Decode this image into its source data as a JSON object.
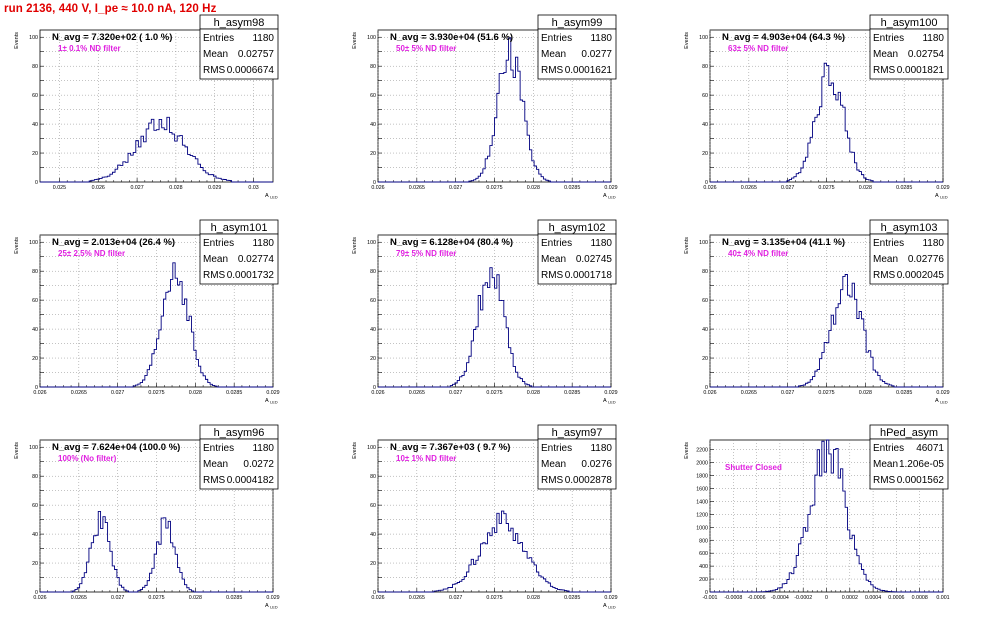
{
  "header": {
    "title": "run 2136,   440 V, I_pe ≈ 10.0 nA, 120 Hz"
  },
  "chart_data": [
    {
      "type": "histogram",
      "name": "h_asym98",
      "annotation": "N_avg = 7.320e+02 ( 1.0 %)",
      "filter": "1± 0.1% ND filter",
      "stats": {
        "Entries": "1180",
        "Mean": "0.02757",
        "RMS": "0.0006674"
      },
      "ylabel": "Events",
      "xlabel": "A_LED",
      "xlim": [
        0.0245,
        0.0305
      ],
      "ylim": [
        0,
        105
      ],
      "xticks": [
        "0.025",
        "0.026",
        "0.027",
        "0.028",
        "0.029",
        "0.03"
      ],
      "xtick_values": [
        0.025,
        0.026,
        0.027,
        0.028,
        0.029,
        0.03
      ],
      "yticks": [
        0,
        10,
        20,
        30,
        40,
        50,
        60,
        70,
        80,
        90,
        100
      ],
      "ytick_labels": [
        "0",
        "",
        "20",
        "",
        "40",
        "",
        "60",
        "",
        "80",
        "",
        "100"
      ],
      "peaks": [
        {
          "center": 0.0276,
          "sigma": 0.00065,
          "height": 40
        }
      ],
      "bins": 90
    },
    {
      "type": "histogram",
      "name": "h_asym99",
      "annotation": "N_avg = 3.930e+04 (51.6 %)",
      "filter": "50± 5% ND filter",
      "stats": {
        "Entries": "1180",
        "Mean": "0.0277",
        "RMS": "0.0001621"
      },
      "ylabel": "Events",
      "xlabel": "A_LED",
      "xlim": [
        0.026,
        0.029
      ],
      "ylim": [
        0,
        105
      ],
      "xticks": [
        "0.026",
        "0.0265",
        "0.027",
        "0.0275",
        "0.028",
        "0.0285",
        "0.029"
      ],
      "xtick_values": [
        0.026,
        0.0265,
        0.027,
        0.0275,
        0.028,
        0.0285,
        0.029
      ],
      "yticks": [
        0,
        10,
        20,
        30,
        40,
        50,
        60,
        70,
        80,
        90,
        100
      ],
      "ytick_labels": [
        "0",
        "",
        "20",
        "",
        "40",
        "",
        "60",
        "",
        "80",
        "",
        "100"
      ],
      "peaks": [
        {
          "center": 0.0277,
          "sigma": 0.000162,
          "height": 88
        }
      ],
      "bins": 100
    },
    {
      "type": "histogram",
      "name": "h_asym100",
      "annotation": "N_avg = 4.903e+04 (64.3 %)",
      "filter": "63± 5% ND filter",
      "stats": {
        "Entries": "1180",
        "Mean": "0.02754",
        "RMS": "0.0001821"
      },
      "ylabel": "Events",
      "xlabel": "A_LED",
      "xlim": [
        0.026,
        0.029
      ],
      "ylim": [
        0,
        105
      ],
      "xticks": [
        "0.026",
        "0.0265",
        "0.027",
        "0.0275",
        "0.028",
        "0.0285",
        "0.029"
      ],
      "xtick_values": [
        0.026,
        0.0265,
        0.027,
        0.0275,
        0.028,
        0.0285,
        0.029
      ],
      "yticks": [
        0,
        10,
        20,
        30,
        40,
        50,
        60,
        70,
        80,
        90,
        100
      ],
      "ytick_labels": [
        "0",
        "",
        "20",
        "",
        "40",
        "",
        "60",
        "",
        "80",
        "",
        "100"
      ],
      "peaks": [
        {
          "center": 0.02754,
          "sigma": 0.00018,
          "height": 75
        }
      ],
      "bins": 100
    },
    {
      "type": "histogram",
      "name": "h_asym101",
      "annotation": "N_avg = 2.013e+04 (26.4 %)",
      "filter": "25± 2.5% ND filter",
      "stats": {
        "Entries": "1180",
        "Mean": "0.02774",
        "RMS": "0.0001732"
      },
      "ylabel": "Events",
      "xlabel": "A_LED",
      "xlim": [
        0.026,
        0.029
      ],
      "ylim": [
        0,
        105
      ],
      "xticks": [
        "0.026",
        "0.0265",
        "0.027",
        "0.0275",
        "0.028",
        "0.0285",
        "0.029"
      ],
      "xtick_values": [
        0.026,
        0.0265,
        0.027,
        0.0275,
        0.028,
        0.0285,
        0.029
      ],
      "yticks": [
        0,
        10,
        20,
        30,
        40,
        50,
        60,
        70,
        80,
        90,
        100
      ],
      "ytick_labels": [
        "0",
        "",
        "20",
        "",
        "40",
        "",
        "60",
        "",
        "80",
        "",
        "100"
      ],
      "peaks": [
        {
          "center": 0.02774,
          "sigma": 0.00017,
          "height": 82
        }
      ],
      "bins": 100
    },
    {
      "type": "histogram",
      "name": "h_asym102",
      "annotation": "N_avg = 6.128e+04 (80.4 %)",
      "filter": "79± 5% ND filter",
      "stats": {
        "Entries": "1180",
        "Mean": "0.02745",
        "RMS": "0.0001718"
      },
      "ylabel": "Events",
      "xlabel": "A_LED",
      "xlim": [
        0.026,
        0.029
      ],
      "ylim": [
        0,
        105
      ],
      "xticks": [
        "0.026",
        "0.0265",
        "0.027",
        "0.0275",
        "0.028",
        "0.0285",
        "0.029"
      ],
      "xtick_values": [
        0.026,
        0.0265,
        0.027,
        0.0275,
        0.028,
        0.0285,
        0.029
      ],
      "yticks": [
        0,
        10,
        20,
        30,
        40,
        50,
        60,
        70,
        80,
        90,
        100
      ],
      "ytick_labels": [
        "0",
        "",
        "20",
        "",
        "40",
        "",
        "60",
        "",
        "80",
        "",
        "100"
      ],
      "peaks": [
        {
          "center": 0.02745,
          "sigma": 0.00017,
          "height": 80
        }
      ],
      "bins": 100
    },
    {
      "type": "histogram",
      "name": "h_asym103",
      "annotation": "N_avg = 3.135e+04 (41.1 %)",
      "filter": "40± 4% ND filter",
      "stats": {
        "Entries": "1180",
        "Mean": "0.02776",
        "RMS": "0.0002045"
      },
      "ylabel": "Events",
      "xlabel": "A_LED",
      "xlim": [
        0.026,
        0.029
      ],
      "ylim": [
        0,
        105
      ],
      "xticks": [
        "0.026",
        "0.0265",
        "0.027",
        "0.0275",
        "0.028",
        "0.0285",
        "0.029"
      ],
      "xtick_values": [
        0.026,
        0.0265,
        0.027,
        0.0275,
        0.028,
        0.0285,
        0.029
      ],
      "yticks": [
        0,
        10,
        20,
        30,
        40,
        50,
        60,
        70,
        80,
        90,
        100
      ],
      "ytick_labels": [
        "0",
        "",
        "20",
        "",
        "40",
        "",
        "60",
        "",
        "80",
        "",
        "100"
      ],
      "peaks": [
        {
          "center": 0.02776,
          "sigma": 0.0002,
          "height": 68
        }
      ],
      "bins": 100
    },
    {
      "type": "histogram",
      "name": "h_asym96",
      "annotation": "N_avg = 7.624e+04 (100.0 %)",
      "filter": "100% (No filter)",
      "stats": {
        "Entries": "1180",
        "Mean": "0.0272",
        "RMS": "0.0004182"
      },
      "ylabel": "Events",
      "xlabel": "A_LED",
      "xlim": [
        0.026,
        0.029
      ],
      "ylim": [
        0,
        105
      ],
      "xticks": [
        "0.026",
        "0.0265",
        "0.027",
        "0.0275",
        "0.028",
        "0.0285",
        "0.029"
      ],
      "xtick_values": [
        0.026,
        0.0265,
        0.027,
        0.0275,
        0.028,
        0.0285,
        0.029
      ],
      "yticks": [
        0,
        10,
        20,
        30,
        40,
        50,
        60,
        70,
        80,
        90,
        100
      ],
      "ytick_labels": [
        "0",
        "",
        "20",
        "",
        "40",
        "",
        "60",
        "",
        "80",
        "",
        "100"
      ],
      "peaks": [
        {
          "center": 0.02678,
          "sigma": 0.00012,
          "height": 50
        },
        {
          "center": 0.02762,
          "sigma": 0.00012,
          "height": 48
        }
      ],
      "bins": 100
    },
    {
      "type": "histogram",
      "name": "h_asym97",
      "annotation": "N_avg = 7.367e+03 ( 9.7 %)",
      "filter": "10± 1% ND filter",
      "stats": {
        "Entries": "1180",
        "Mean": "0.0276",
        "RMS": "0.0002878"
      },
      "ylabel": "Events",
      "xlabel": "A_LED",
      "xlim": [
        0.026,
        0.029
      ],
      "ylim": [
        0,
        105
      ],
      "xticks": [
        "0.026",
        "0.0265",
        "0.027",
        "0.0275",
        "0.028",
        "0.0285",
        "0.029"
      ],
      "xtick_values": [
        0.026,
        0.0265,
        0.027,
        0.0275,
        0.028,
        0.0285,
        0.029
      ],
      "yticks": [
        0,
        10,
        20,
        30,
        40,
        50,
        60,
        70,
        80,
        90,
        100
      ],
      "ytick_labels": [
        "0",
        "",
        "20",
        "",
        "40",
        "",
        "60",
        "",
        "80",
        "",
        "100"
      ],
      "peaks": [
        {
          "center": 0.0276,
          "sigma": 0.00029,
          "height": 48
        }
      ],
      "bins": 100
    },
    {
      "type": "histogram",
      "name": "hPed_asym",
      "annotation": "",
      "filter": "Shutter Closed",
      "stats": {
        "Entries": "46071",
        "Mean": "1.206e-05",
        "RMS": "0.0001562"
      },
      "ylabel": "Events",
      "xlabel": "",
      "xlim": [
        -0.001,
        0.001
      ],
      "ylim": [
        0,
        2350
      ],
      "xticks": [
        "-0.001",
        "-0.0008",
        "-0.0006",
        "-0.0004",
        "-0.0002",
        "0",
        "0.0002",
        "0.0004",
        "0.0006",
        "0.0008",
        "0.001"
      ],
      "xtick_values": [
        -0.001,
        -0.0008,
        -0.0006,
        -0.0004,
        -0.0002,
        0,
        0.0002,
        0.0004,
        0.0006,
        0.0008,
        0.001
      ],
      "yticks": [
        0,
        200,
        400,
        600,
        800,
        1000,
        1200,
        1400,
        1600,
        1800,
        2000,
        2200
      ],
      "ytick_labels": [
        "0",
        "200",
        "400",
        "600",
        "800",
        "1000",
        "1200",
        "1400",
        "1600",
        "1800",
        "2000",
        "2200"
      ],
      "peaks": [
        {
          "center": 1.2e-05,
          "sigma": 0.000156,
          "height": 2180
        }
      ],
      "bins": 100
    }
  ]
}
